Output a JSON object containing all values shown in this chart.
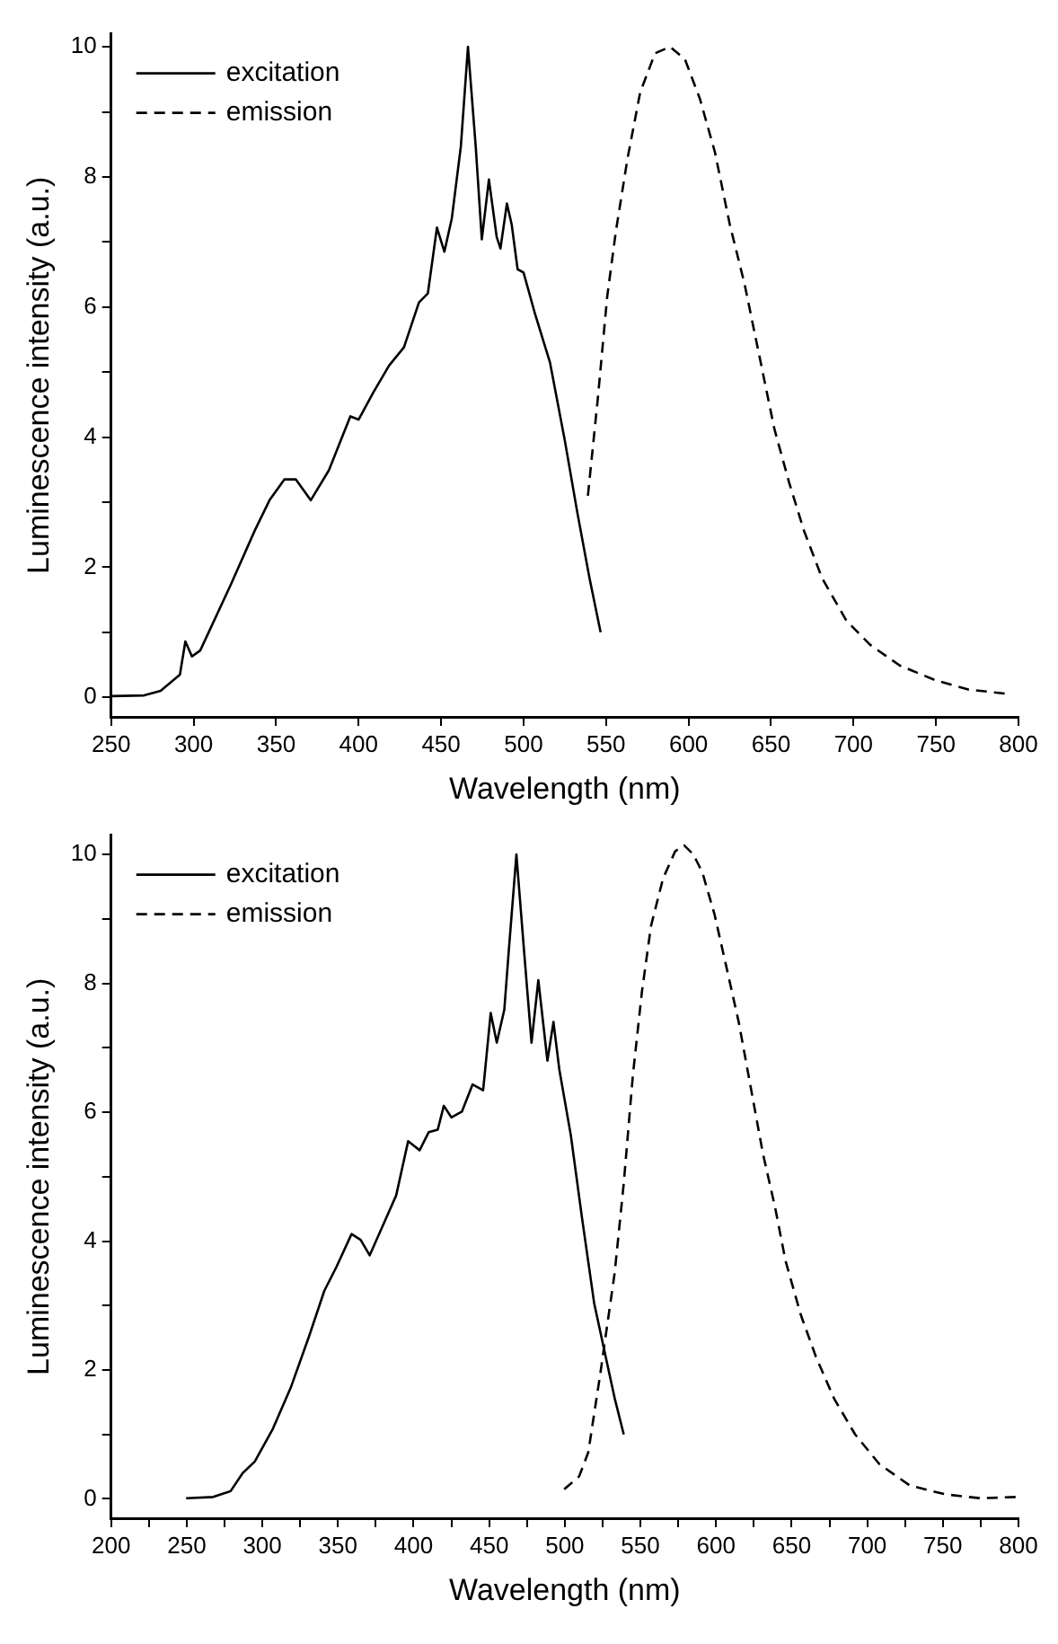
{
  "chart_data": [
    {
      "type": "line",
      "xlabel": "Wavelength (nm)",
      "ylabel": "Luminescence intensity (a.u.)",
      "xlim": [
        250,
        800
      ],
      "xticks": [
        250,
        300,
        350,
        400,
        450,
        500,
        550,
        600,
        650,
        700,
        750,
        800
      ],
      "ylim": [
        -0.3,
        10.2
      ],
      "yticks": [
        0,
        {
          "value": 1,
          "label": null
        },
        2,
        {
          "value": 3,
          "label": null
        },
        4,
        {
          "value": 5,
          "label": null
        },
        6,
        {
          "value": 7,
          "label": null
        },
        8,
        {
          "value": 9,
          "label": null
        },
        10
      ],
      "grid": false,
      "legend": "top left",
      "marker": "none",
      "series": [
        {
          "name": "excitation",
          "color": "#000000",
          "line_style": "solid",
          "x": [
            250,
            270,
            280,
            291.7,
            295,
            299,
            304,
            322.5,
            337,
            346,
            355,
            362,
            371,
            382,
            395,
            400,
            409,
            418.5,
            427.5,
            436.6,
            442,
            447.5,
            452,
            456.5,
            462,
            466.3,
            471,
            474.7,
            479,
            483.7,
            486,
            489.9,
            492.8,
            496.4,
            500,
            507,
            516,
            525,
            532.6,
            540,
            546.7
          ],
          "values": [
            0.02,
            0.03,
            0.1,
            0.35,
            0.86,
            0.63,
            0.72,
            1.73,
            2.56,
            3.03,
            3.35,
            3.35,
            3.03,
            3.49,
            4.32,
            4.27,
            4.69,
            5.1,
            5.38,
            6.07,
            6.21,
            7.22,
            6.85,
            7.36,
            8.47,
            10,
            8.47,
            7.04,
            7.96,
            7.08,
            6.9,
            7.59,
            7.27,
            6.58,
            6.53,
            5.89,
            5.15,
            3.95,
            2.84,
            1.83,
            1.0
          ]
        },
        {
          "name": "emission",
          "color": "#000000",
          "line_style": "dashed",
          "x": [
            539,
            545,
            550.7,
            556,
            563,
            570.7,
            579.7,
            588.8,
            597.8,
            606.9,
            616,
            625,
            634,
            643,
            652,
            661,
            670,
            681,
            695.7,
            710,
            728,
            750,
            769.6,
            795
          ],
          "values": [
            3.1,
            4.59,
            6.16,
            7.17,
            8.28,
            9.3,
            9.9,
            10,
            9.81,
            9.2,
            8.38,
            7.27,
            6.35,
            5.24,
            4.13,
            3.3,
            2.56,
            1.83,
            1.18,
            0.81,
            0.49,
            0.26,
            0.12,
            0.05
          ]
        }
      ]
    },
    {
      "type": "line",
      "xlabel": "Wavelength (nm)",
      "ylabel": "Luminescence intensity (a.u.)",
      "xlim": [
        200,
        800
      ],
      "xticks": [
        200,
        {
          "value": 225,
          "label": null
        },
        250,
        {
          "value": 275,
          "label": null
        },
        300,
        {
          "value": 325,
          "label": null
        },
        350,
        {
          "value": 375,
          "label": null
        },
        400,
        {
          "value": 425,
          "label": null
        },
        450,
        {
          "value": 475,
          "label": null
        },
        500,
        {
          "value": 525,
          "label": null
        },
        550,
        {
          "value": 575,
          "label": null
        },
        600,
        {
          "value": 625,
          "label": null
        },
        650,
        {
          "value": 675,
          "label": null
        },
        700,
        {
          "value": 725,
          "label": null
        },
        750,
        {
          "value": 775,
          "label": null
        },
        800
      ],
      "ylim": [
        -0.3,
        10.3
      ],
      "yticks": [
        0,
        {
          "value": 1,
          "label": null
        },
        2,
        {
          "value": 3,
          "label": null
        },
        4,
        {
          "value": 5,
          "label": null
        },
        6,
        {
          "value": 7,
          "label": null
        },
        8,
        {
          "value": 9,
          "label": null
        },
        10
      ],
      "grid": false,
      "legend": "top left",
      "marker": "none",
      "series": [
        {
          "name": "excitation",
          "color": "#000000",
          "line_style": "solid",
          "x": [
            249.6,
            267.5,
            279,
            287,
            295,
            307,
            319,
            331,
            341,
            349,
            359,
            365,
            371,
            382.5,
            388.5,
            396.4,
            404,
            410,
            416,
            420,
            425,
            432,
            439,
            446,
            451,
            455,
            460,
            463,
            468,
            473,
            478,
            482.5,
            488.5,
            492.5,
            496.4,
            504,
            511.5,
            519.4,
            527,
            533,
            539
          ],
          "values": [
            0.01,
            0.03,
            0.12,
            0.4,
            0.58,
            1.09,
            1.74,
            2.53,
            3.23,
            3.6,
            4.11,
            4.02,
            3.78,
            4.39,
            4.71,
            5.55,
            5.41,
            5.69,
            5.73,
            6.1,
            5.92,
            6.01,
            6.43,
            6.34,
            7.54,
            7.08,
            7.59,
            8.52,
            10,
            8.52,
            7.08,
            8.05,
            6.8,
            7.4,
            6.66,
            5.64,
            4.34,
            3.04,
            2.21,
            1.56,
            1.0
          ]
        },
        {
          "name": "emission",
          "color": "#000000",
          "line_style": "dashed",
          "x": [
            499.6,
            509.5,
            515.5,
            523.4,
            533,
            539,
            545,
            551,
            557,
            565,
            573,
            579,
            585,
            591,
            599,
            607,
            615,
            623,
            631,
            639,
            646,
            656,
            666,
            678,
            692,
            708,
            728,
            751.6,
            775,
            799
          ],
          "values": [
            0.15,
            0.35,
            0.72,
            1.93,
            3.51,
            4.9,
            6.57,
            7.87,
            8.89,
            9.63,
            10.05,
            10.14,
            10.0,
            9.72,
            9.07,
            8.24,
            7.4,
            6.38,
            5.36,
            4.53,
            3.69,
            2.86,
            2.21,
            1.56,
            1.0,
            0.54,
            0.21,
            0.07,
            0.01,
            0.03
          ]
        }
      ]
    }
  ]
}
